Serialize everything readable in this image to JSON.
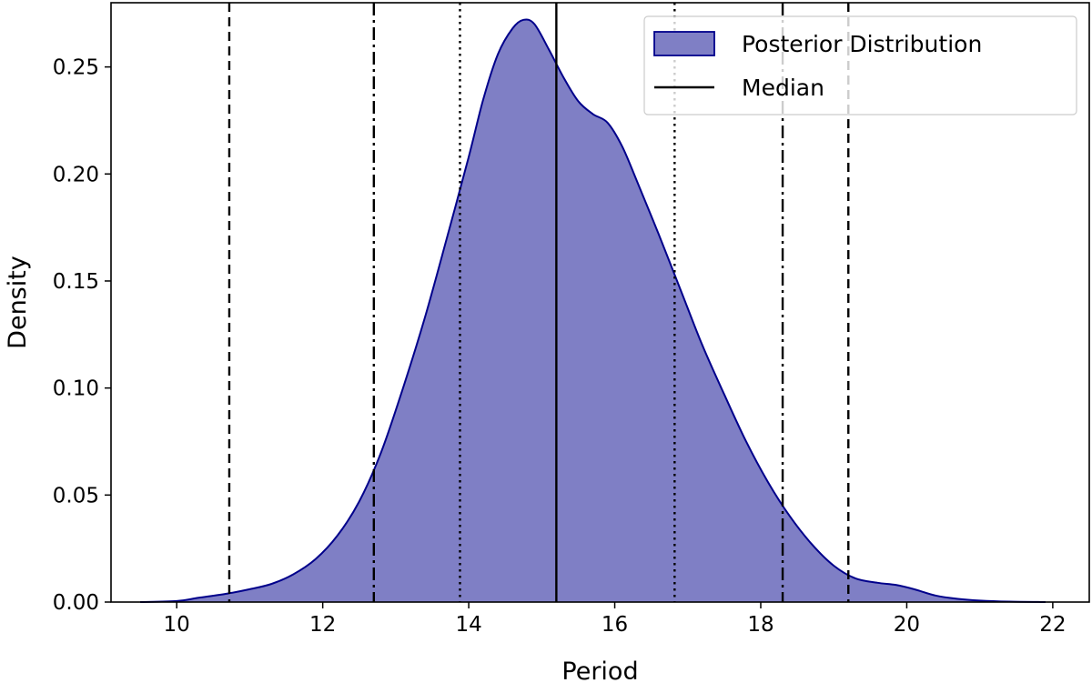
{
  "chart_data": {
    "type": "area",
    "title": "",
    "xlabel": "Period",
    "ylabel": "Density",
    "xlim": [
      9.1,
      22.5
    ],
    "ylim": [
      0.0,
      0.28
    ],
    "x_ticks": [
      10,
      12,
      14,
      16,
      18,
      20,
      22
    ],
    "y_ticks": [
      0.0,
      0.05,
      0.1,
      0.15,
      0.2,
      0.25
    ],
    "x_tick_labels": [
      "10",
      "12",
      "14",
      "16",
      "18",
      "20",
      "22"
    ],
    "y_tick_labels": [
      "0.00",
      "0.05",
      "0.10",
      "0.15",
      "0.20",
      "0.25"
    ],
    "grid": false,
    "legend_position": "top-right",
    "series": [
      {
        "name": "Posterior Distribution",
        "color": "#00008b",
        "fill_color": "#7f7fc5",
        "x": [
          9.5,
          10.0,
          10.3,
          10.7,
          11.0,
          11.3,
          11.6,
          11.9,
          12.2,
          12.5,
          12.8,
          13.1,
          13.4,
          13.7,
          14.0,
          14.2,
          14.4,
          14.6,
          14.75,
          14.9,
          15.1,
          15.3,
          15.5,
          15.7,
          15.9,
          16.1,
          16.3,
          16.6,
          16.9,
          17.2,
          17.5,
          17.8,
          18.1,
          18.4,
          18.7,
          19.0,
          19.3,
          19.6,
          19.85,
          20.1,
          20.4,
          20.7,
          21.0,
          21.4,
          21.9
        ],
        "values": [
          0.0,
          0.0005,
          0.002,
          0.004,
          0.006,
          0.0085,
          0.013,
          0.02,
          0.031,
          0.047,
          0.07,
          0.1,
          0.133,
          0.17,
          0.208,
          0.235,
          0.256,
          0.268,
          0.272,
          0.27,
          0.258,
          0.245,
          0.234,
          0.228,
          0.224,
          0.213,
          0.197,
          0.172,
          0.146,
          0.12,
          0.097,
          0.075,
          0.056,
          0.04,
          0.027,
          0.017,
          0.011,
          0.009,
          0.008,
          0.006,
          0.003,
          0.0015,
          0.0007,
          0.0002,
          0.0
        ]
      },
      {
        "name": "Median",
        "color": "#000000",
        "x": 15.2
      }
    ],
    "vertical_lines": [
      {
        "x": 10.72,
        "style": "dashed"
      },
      {
        "x": 12.7,
        "style": "dashdot"
      },
      {
        "x": 13.88,
        "style": "dotted"
      },
      {
        "x": 15.2,
        "style": "solid"
      },
      {
        "x": 16.82,
        "style": "dotted"
      },
      {
        "x": 18.3,
        "style": "dashdot"
      },
      {
        "x": 19.2,
        "style": "dashed"
      }
    ]
  }
}
